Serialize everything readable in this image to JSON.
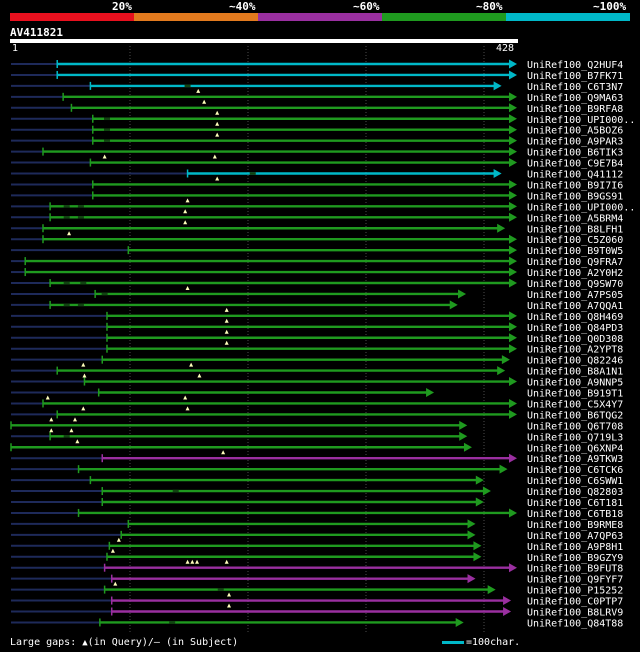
{
  "scale": {
    "labels": [
      "20%",
      "~40%",
      "~60%",
      "~80%",
      "~100%"
    ],
    "colors": [
      "#e8101e",
      "#e27a1e",
      "#9a2fa0",
      "#1f9a1f",
      "#00b8c8"
    ]
  },
  "query": {
    "name": "AV411821",
    "start_label": "1",
    "end_label": "428"
  },
  "footer": {
    "gaps_prefix": "Large gaps: ",
    "gaps_query": "(in Query)/",
    "gaps_dash": "—",
    "gaps_subject": " (in Subject)",
    "legend_label": "=100char."
  },
  "chart_data": {
    "type": "alignment",
    "query_length": 428,
    "series": [
      {
        "name": "UniRef100_Q2HUF4",
        "color": "#00b8c8",
        "start": 40,
        "end": 428,
        "pre": 40,
        "gaps": [],
        "tris": []
      },
      {
        "name": "UniRef100_B7FK71",
        "color": "#00b8c8",
        "start": 40,
        "end": 428,
        "pre": 40,
        "gaps": [],
        "tris": []
      },
      {
        "name": "UniRef100_C6T3N7",
        "color": "#00b8c8",
        "start": 68,
        "end": 415,
        "pre": 68,
        "gaps": [
          150
        ],
        "tris": []
      },
      {
        "name": "UniRef100_Q9MA63",
        "color": "#1f9a1f",
        "start": 45,
        "end": 428,
        "pre": 45,
        "gaps": [],
        "tris": [
          159
        ]
      },
      {
        "name": "UniRef100_B9RFA8",
        "color": "#1f9a1f",
        "start": 52,
        "end": 428,
        "pre": 52,
        "gaps": [],
        "tris": [
          164
        ]
      },
      {
        "name": "UniRef100_UPI000..",
        "color": "#1f9a1f",
        "start": 70,
        "end": 428,
        "pre": 70,
        "gaps": [
          82
        ],
        "tris": [
          175
        ]
      },
      {
        "name": "UniRef100_A5BOZ6",
        "color": "#1f9a1f",
        "start": 70,
        "end": 428,
        "pre": 70,
        "gaps": [
          82
        ],
        "tris": [
          175
        ]
      },
      {
        "name": "UniRef100_A9PAR3",
        "color": "#1f9a1f",
        "start": 70,
        "end": 428,
        "pre": 70,
        "gaps": [
          82
        ],
        "tris": [
          175
        ]
      },
      {
        "name": "UniRef100_B6TIK3",
        "color": "#1f9a1f",
        "start": 28,
        "end": 428,
        "pre": 28,
        "gaps": [],
        "tris": []
      },
      {
        "name": "UniRef100_C9E7B4",
        "color": "#1f9a1f",
        "start": 68,
        "end": 428,
        "pre": 68,
        "gaps": [],
        "tris": [
          80,
          173
        ]
      },
      {
        "name": "UniRef100_Q41112",
        "color": "#00b8c8",
        "start": 150,
        "end": 415,
        "pre": 150,
        "gaps": [
          205
        ],
        "tris": []
      },
      {
        "name": "UniRef100_B9I7I6",
        "color": "#1f9a1f",
        "start": 70,
        "end": 428,
        "pre": 70,
        "gaps": [],
        "tris": [
          175
        ]
      },
      {
        "name": "UniRef100_B9GS91",
        "color": "#1f9a1f",
        "start": 70,
        "end": 428,
        "pre": 70,
        "gaps": [],
        "tris": []
      },
      {
        "name": "UniRef100_UPI000..",
        "color": "#1f9a1f",
        "start": 34,
        "end": 428,
        "pre": 34,
        "gaps": [
          48,
          60
        ],
        "tris": [
          150
        ]
      },
      {
        "name": "UniRef100_A5BRM4",
        "color": "#1f9a1f",
        "start": 34,
        "end": 428,
        "pre": 34,
        "gaps": [
          48,
          60
        ],
        "tris": [
          148
        ]
      },
      {
        "name": "UniRef100_B8LFH1",
        "color": "#1f9a1f",
        "start": 28,
        "end": 418,
        "pre": 28,
        "gaps": [],
        "tris": [
          148
        ]
      },
      {
        "name": "UniRef100_C5Z060",
        "color": "#1f9a1f",
        "start": 28,
        "end": 428,
        "pre": 28,
        "gaps": [],
        "tris": [
          50
        ]
      },
      {
        "name": "UniRef100_B9T0W5",
        "color": "#1f9a1f",
        "start": 100,
        "end": 428,
        "pre": 100,
        "gaps": [],
        "tris": []
      },
      {
        "name": "UniRef100_Q9FRA7",
        "color": "#1f9a1f",
        "start": 13,
        "end": 428,
        "pre": 13,
        "gaps": [],
        "tris": []
      },
      {
        "name": "UniRef100_A2Y0H2",
        "color": "#1f9a1f",
        "start": 13,
        "end": 428,
        "pre": 13,
        "gaps": [],
        "tris": []
      },
      {
        "name": "UniRef100_Q9SW70",
        "color": "#1f9a1f",
        "start": 34,
        "end": 428,
        "pre": 34,
        "gaps": [
          48,
          62
        ],
        "tris": []
      },
      {
        "name": "UniRef100_A7PS05",
        "color": "#1f9a1f",
        "start": 72,
        "end": 385,
        "pre": 72,
        "gaps": [
          80
        ],
        "tris": [
          150
        ]
      },
      {
        "name": "UniRef100_A7QQA1",
        "color": "#1f9a1f",
        "start": 34,
        "end": 378,
        "pre": 34,
        "gaps": [
          48,
          60
        ],
        "tris": []
      },
      {
        "name": "UniRef100_Q8H469",
        "color": "#1f9a1f",
        "start": 82,
        "end": 428,
        "pre": 82,
        "gaps": [],
        "tris": [
          183
        ]
      },
      {
        "name": "UniRef100_Q84PD3",
        "color": "#1f9a1f",
        "start": 82,
        "end": 428,
        "pre": 82,
        "gaps": [],
        "tris": [
          183
        ]
      },
      {
        "name": "UniRef100_Q0D308",
        "color": "#1f9a1f",
        "start": 82,
        "end": 428,
        "pre": 82,
        "gaps": [],
        "tris": [
          183
        ]
      },
      {
        "name": "UniRef100_A2YPT8",
        "color": "#1f9a1f",
        "start": 82,
        "end": 428,
        "pre": 82,
        "gaps": [],
        "tris": [
          183
        ]
      },
      {
        "name": "UniRef100_Q82246",
        "color": "#1f9a1f",
        "start": 78,
        "end": 422,
        "pre": 78,
        "gaps": [],
        "tris": []
      },
      {
        "name": "UniRef100_B8A1N1",
        "color": "#1f9a1f",
        "start": 40,
        "end": 418,
        "pre": 40,
        "gaps": [],
        "tris": [
          62,
          153
        ]
      },
      {
        "name": "UniRef100_A9NNP5",
        "color": "#1f9a1f",
        "start": 63,
        "end": 428,
        "pre": 63,
        "gaps": [],
        "tris": [
          63,
          160
        ]
      },
      {
        "name": "UniRef100_B919T1",
        "color": "#1f9a1f",
        "start": 75,
        "end": 358,
        "pre": 75,
        "gaps": [],
        "tris": []
      },
      {
        "name": "UniRef100_C5X4Y7",
        "color": "#1f9a1f",
        "start": 28,
        "end": 428,
        "pre": 28,
        "gaps": [],
        "tris": [
          32,
          148
        ]
      },
      {
        "name": "UniRef100_B6TQG2",
        "color": "#1f9a1f",
        "start": 40,
        "end": 428,
        "pre": 40,
        "gaps": [],
        "tris": [
          62,
          150
        ]
      },
      {
        "name": "UniRef100_Q6T708",
        "color": "#1f9a1f",
        "start": 1,
        "end": 386,
        "pre": 1,
        "gaps": [],
        "tris": [
          35,
          55
        ]
      },
      {
        "name": "UniRef100_Q719L3",
        "color": "#1f9a1f",
        "start": 34,
        "end": 386,
        "pre": 34,
        "gaps": [
          48
        ],
        "tris": [
          35,
          52
        ]
      },
      {
        "name": "UniRef100_Q6XNP4",
        "color": "#1f9a1f",
        "start": 1,
        "end": 390,
        "pre": 1,
        "gaps": [],
        "tris": [
          57
        ]
      },
      {
        "name": "UniRef100_A9TKW3",
        "color": "#9a2fa0",
        "start": 78,
        "end": 428,
        "pre": 78,
        "gaps": [],
        "tris": [
          180
        ]
      },
      {
        "name": "UniRef100_C6TCK6",
        "color": "#1f9a1f",
        "start": 58,
        "end": 420,
        "pre": 58,
        "gaps": [],
        "tris": []
      },
      {
        "name": "UniRef100_C6SWW1",
        "color": "#1f9a1f",
        "start": 68,
        "end": 400,
        "pre": 68,
        "gaps": [],
        "tris": []
      },
      {
        "name": "UniRef100_Q82803",
        "color": "#1f9a1f",
        "start": 78,
        "end": 406,
        "pre": 78,
        "gaps": [
          140
        ],
        "tris": []
      },
      {
        "name": "UniRef100_C6T181",
        "color": "#1f9a1f",
        "start": 78,
        "end": 400,
        "pre": 78,
        "gaps": [],
        "tris": []
      },
      {
        "name": "UniRef100_C6TB18",
        "color": "#1f9a1f",
        "start": 58,
        "end": 428,
        "pre": 58,
        "gaps": [],
        "tris": []
      },
      {
        "name": "UniRef100_B9RME8",
        "color": "#1f9a1f",
        "start": 100,
        "end": 393,
        "pre": 100,
        "gaps": [],
        "tris": []
      },
      {
        "name": "UniRef100_A7QP63",
        "color": "#1f9a1f",
        "start": 94,
        "end": 393,
        "pre": 94,
        "gaps": [],
        "tris": []
      },
      {
        "name": "UniRef100_A9P8H1",
        "color": "#1f9a1f",
        "start": 84,
        "end": 398,
        "pre": 84,
        "gaps": [],
        "tris": [
          92
        ]
      },
      {
        "name": "UniRef100_B9GZY9",
        "color": "#1f9a1f",
        "start": 82,
        "end": 398,
        "pre": 82,
        "gaps": [],
        "tris": [
          87
        ]
      },
      {
        "name": "UniRef100_B9FUT8",
        "color": "#9a2fa0",
        "start": 80,
        "end": 428,
        "pre": 80,
        "gaps": [],
        "tris": [
          150,
          154,
          158,
          183
        ]
      },
      {
        "name": "UniRef100_Q9FYF7",
        "color": "#9a2fa0",
        "start": 86,
        "end": 393,
        "pre": 86,
        "gaps": [],
        "tris": []
      },
      {
        "name": "UniRef100_P15252",
        "color": "#1f9a1f",
        "start": 80,
        "end": 410,
        "pre": 80,
        "gaps": [
          178
        ],
        "tris": [
          89
        ]
      },
      {
        "name": "UniRef100_C0PTP7",
        "color": "#9a2fa0",
        "start": 86,
        "end": 423,
        "pre": 86,
        "gaps": [],
        "tris": [
          185
        ]
      },
      {
        "name": "UniRef100_B8LRV9",
        "color": "#9a2fa0",
        "start": 86,
        "end": 423,
        "pre": 86,
        "gaps": [],
        "tris": [
          185
        ]
      },
      {
        "name": "UniRef100_Q84T88",
        "color": "#1f9a1f",
        "start": 76,
        "end": 383,
        "pre": 76,
        "gaps": [
          137
        ],
        "tris": []
      }
    ]
  }
}
